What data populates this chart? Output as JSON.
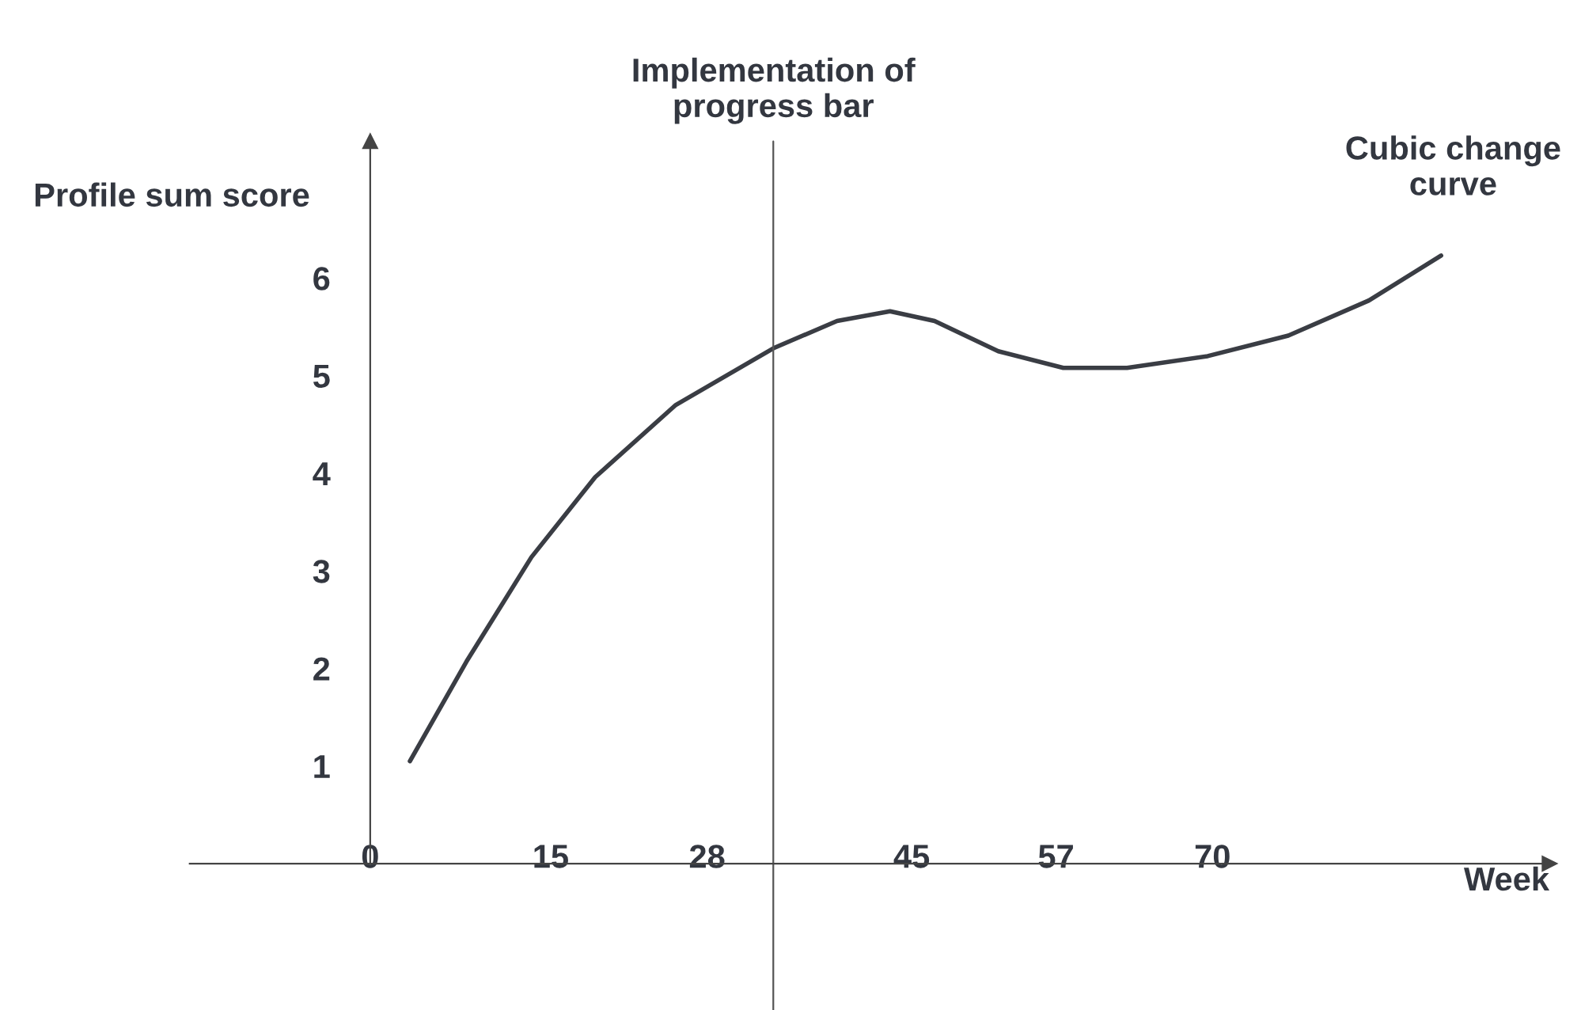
{
  "chart_data": {
    "type": "line",
    "xlabel": "Week",
    "ylabel": "Profile sum score",
    "xlim": [
      -15,
      98
    ],
    "ylim": [
      -1.5,
      7.4
    ],
    "xticks": [
      0,
      15,
      28,
      45,
      57,
      70
    ],
    "yticks": [
      1,
      2,
      3,
      4,
      5,
      6
    ],
    "series": [
      {
        "color": "#3a3d44",
        "x": [
          3.3,
          8.0,
          13.4,
          18.7,
          25.4,
          33.5,
          38.8,
          43.2,
          46.9,
          52.2,
          57.6,
          62.9,
          69.6,
          76.3,
          83.0,
          89.0
        ],
        "values": [
          1.05,
          2.07,
          3.14,
          3.96,
          4.7,
          5.28,
          5.56,
          5.66,
          5.56,
          5.25,
          5.08,
          5.08,
          5.2,
          5.41,
          5.77,
          6.23
        ]
      }
    ],
    "ref_lines": [
      {
        "axis": "x",
        "value": 33.5,
        "label": "Implementation of\nprogress bar",
        "color": "#555555"
      }
    ],
    "annotations": [
      {
        "text": "Cubic change\ncurve",
        "x": 89.0,
        "y": 6.23
      }
    ],
    "grid": false,
    "legend": false,
    "marker": "none",
    "line_style": "solid"
  }
}
